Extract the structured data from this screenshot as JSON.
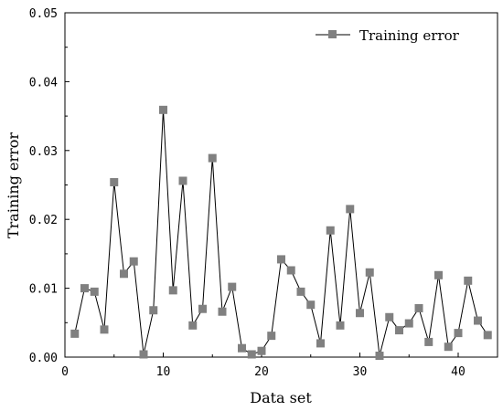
{
  "chart_data": {
    "type": "line",
    "title": "",
    "xlabel": "Data set",
    "ylabel": "Training error",
    "xlim": [
      0,
      44
    ],
    "ylim": [
      0,
      0.05
    ],
    "x_ticks": [
      0,
      10,
      20,
      30,
      40
    ],
    "y_ticks": [
      0.0,
      0.01,
      0.02,
      0.03,
      0.04,
      0.05
    ],
    "x_tick_labels": [
      "0",
      "10",
      "20",
      "30",
      "40"
    ],
    "y_tick_labels": [
      "0.00",
      "0.01",
      "0.02",
      "0.03",
      "0.04",
      "0.05"
    ],
    "grid": false,
    "legend_position": "top-right",
    "series": [
      {
        "name": "Training error",
        "color": "#808080",
        "marker": "square",
        "x": [
          1,
          2,
          3,
          4,
          5,
          6,
          7,
          8,
          9,
          10,
          11,
          12,
          13,
          14,
          15,
          16,
          17,
          18,
          19,
          20,
          21,
          22,
          23,
          24,
          25,
          26,
          27,
          28,
          29,
          30,
          31,
          32,
          33,
          34,
          35,
          36,
          37,
          38,
          39,
          40,
          41,
          42,
          43
        ],
        "values": [
          0.0034,
          0.01,
          0.0095,
          0.004,
          0.0254,
          0.0121,
          0.0139,
          0.0004,
          0.0068,
          0.0359,
          0.0097,
          0.0256,
          0.0046,
          0.007,
          0.0289,
          0.0066,
          0.0102,
          0.0013,
          0.0004,
          0.0009,
          0.0031,
          0.0142,
          0.0126,
          0.0095,
          0.0076,
          0.002,
          0.0184,
          0.0046,
          0.0215,
          0.0064,
          0.0123,
          0.0002,
          0.0058,
          0.0039,
          0.0049,
          0.0071,
          0.0022,
          0.0119,
          0.0015,
          0.0035,
          0.0111,
          0.0053,
          0.0032
        ]
      }
    ]
  }
}
